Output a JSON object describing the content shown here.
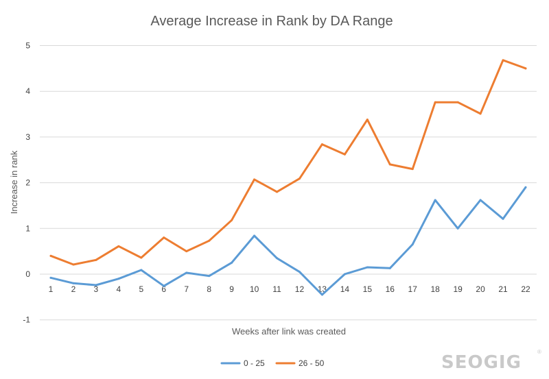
{
  "chart_data": {
    "type": "line",
    "title": "Average Increase in Rank by DA Range",
    "xlabel": "Weeks after link was created",
    "ylabel": "Increase in rank",
    "categories": [
      "1",
      "2",
      "3",
      "4",
      "5",
      "6",
      "7",
      "8",
      "9",
      "10",
      "11",
      "12",
      "13",
      "14",
      "15",
      "16",
      "17",
      "18",
      "19",
      "20",
      "21",
      "22"
    ],
    "yticks": [
      "-1",
      "0",
      "1",
      "2",
      "3",
      "4",
      "5"
    ],
    "ylim": [
      -1,
      5
    ],
    "grid": true,
    "legend_position": "bottom",
    "series": [
      {
        "name": "0 - 25",
        "color": "#5b9bd5",
        "values": [
          -0.08,
          -0.2,
          -0.24,
          -0.1,
          0.09,
          -0.26,
          0.03,
          -0.04,
          0.25,
          0.84,
          0.35,
          0.05,
          -0.45,
          0.0,
          0.15,
          0.13,
          0.65,
          1.62,
          1.0,
          1.62,
          1.21,
          1.9
        ]
      },
      {
        "name": "26 - 50",
        "color": "#ed7d31",
        "values": [
          0.4,
          0.21,
          0.31,
          0.61,
          0.36,
          0.8,
          0.5,
          0.73,
          1.18,
          2.07,
          1.8,
          2.09,
          2.84,
          2.62,
          3.38,
          2.4,
          2.3,
          3.76,
          3.76,
          3.51,
          4.68,
          4.5
        ]
      }
    ]
  },
  "watermark": {
    "text": "SEOGIG",
    "mark": "®"
  }
}
